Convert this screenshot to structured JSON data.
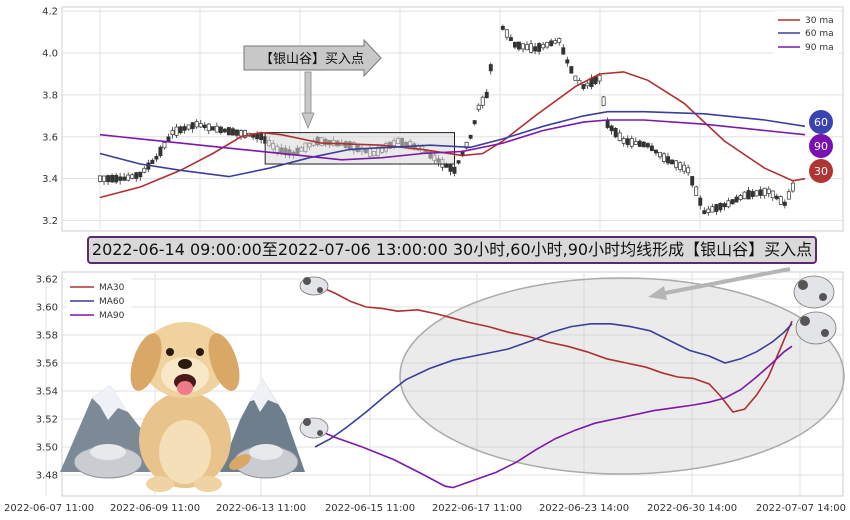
{
  "banner_text": "2022-06-14 09:00:00至2022-07-06 13:00:00 30小时,60小时,90小时均线形成【银山谷】买入点",
  "arrow_label": "【银山谷】买入点",
  "badges": [
    "60",
    "90",
    "30"
  ],
  "colors": {
    "ma30": "#b03030",
    "ma60": "#3a3f9a",
    "ma90": "#7d18a8",
    "badge60": "#3a44b0",
    "badge90": "#7a10b0",
    "badge30": "#b03535"
  },
  "chart_data": [
    {
      "type": "candlestick",
      "ylim": [
        3.15,
        4.22
      ],
      "yticks": [
        "3.2",
        "3.4",
        "3.6",
        "3.8",
        "4.0",
        "4.2"
      ],
      "legend": [
        "30 ma",
        "60 ma",
        "90 ma"
      ],
      "legend_position": "top-right",
      "grid": true,
      "series": [
        {
          "name": "30 ma",
          "points": [
            [
              0,
              3.31
            ],
            [
              10,
              3.36
            ],
            [
              20,
              3.44
            ],
            [
              28,
              3.52
            ],
            [
              35,
              3.6
            ],
            [
              40,
              3.62
            ],
            [
              45,
              3.61
            ],
            [
              55,
              3.57
            ],
            [
              70,
              3.56
            ],
            [
              80,
              3.54
            ],
            [
              90,
              3.51
            ],
            [
              95,
              3.52
            ],
            [
              100,
              3.58
            ],
            [
              108,
              3.7
            ],
            [
              118,
              3.84
            ],
            [
              124,
              3.9
            ],
            [
              130,
              3.91
            ],
            [
              136,
              3.87
            ],
            [
              145,
              3.76
            ],
            [
              155,
              3.58
            ],
            [
              165,
              3.45
            ],
            [
              172,
              3.39
            ],
            [
              175,
              3.4
            ]
          ]
        },
        {
          "name": "60 ma",
          "points": [
            [
              0,
              3.52
            ],
            [
              10,
              3.47
            ],
            [
              20,
              3.44
            ],
            [
              32,
              3.41
            ],
            [
              42,
              3.45
            ],
            [
              52,
              3.5
            ],
            [
              62,
              3.54
            ],
            [
              72,
              3.55
            ],
            [
              82,
              3.56
            ],
            [
              92,
              3.55
            ],
            [
              100,
              3.59
            ],
            [
              110,
              3.65
            ],
            [
              120,
              3.7
            ],
            [
              126,
              3.72
            ],
            [
              135,
              3.72
            ],
            [
              150,
              3.71
            ],
            [
              165,
              3.68
            ],
            [
              175,
              3.65
            ]
          ]
        },
        {
          "name": "90 ma",
          "points": [
            [
              0,
              3.61
            ],
            [
              10,
              3.59
            ],
            [
              20,
              3.57
            ],
            [
              30,
              3.55
            ],
            [
              40,
              3.53
            ],
            [
              50,
              3.51
            ],
            [
              60,
              3.49
            ],
            [
              70,
              3.5
            ],
            [
              80,
              3.52
            ],
            [
              90,
              3.53
            ],
            [
              100,
              3.57
            ],
            [
              110,
              3.63
            ],
            [
              120,
              3.67
            ],
            [
              126,
              3.68
            ],
            [
              135,
              3.68
            ],
            [
              150,
              3.66
            ],
            [
              165,
              3.63
            ],
            [
              175,
              3.61
            ]
          ]
        }
      ],
      "annotation_box": {
        "x_from": 41,
        "x_to": 88,
        "y_from": 3.47,
        "y_to": 3.62
      }
    },
    {
      "type": "line",
      "ylim": [
        3.465,
        3.625
      ],
      "yticks": [
        "3.48",
        "3.50",
        "3.52",
        "3.54",
        "3.56",
        "3.58",
        "3.60",
        "3.62"
      ],
      "xticks": [
        "2022-06-07 11:00",
        "2022-06-09 11:00",
        "2022-06-13 11:00",
        "2022-06-15 11:00",
        "2022-06-17 11:00",
        "2022-06-23 14:00",
        "2022-06-30 14:00",
        "2022-07-07 14:00"
      ],
      "legend": [
        "MA30",
        "MA60",
        "MA90"
      ],
      "legend_position": "top-left",
      "grid": true,
      "series": [
        {
          "name": "MA30",
          "points": [
            [
              0,
              3.616
            ],
            [
              5,
              3.61
            ],
            [
              9,
              3.604
            ],
            [
              13,
              3.6
            ],
            [
              17,
              3.599
            ],
            [
              21,
              3.597
            ],
            [
              26,
              3.598
            ],
            [
              31,
              3.595
            ],
            [
              35,
              3.592
            ],
            [
              39,
              3.589
            ],
            [
              44,
              3.586
            ],
            [
              49,
              3.582
            ],
            [
              54,
              3.579
            ],
            [
              59,
              3.575
            ],
            [
              64,
              3.572
            ],
            [
              69,
              3.568
            ],
            [
              74,
              3.563
            ],
            [
              79,
              3.56
            ],
            [
              84,
              3.557
            ],
            [
              88,
              3.553
            ],
            [
              92,
              3.55
            ],
            [
              96,
              3.549
            ],
            [
              100,
              3.545
            ],
            [
              103,
              3.536
            ],
            [
              106,
              3.525
            ],
            [
              109,
              3.527
            ],
            [
              112,
              3.537
            ],
            [
              115,
              3.55
            ],
            [
              118,
              3.57
            ],
            [
              121,
              3.59
            ]
          ]
        },
        {
          "name": "MA60",
          "points": [
            [
              0,
              3.5
            ],
            [
              4,
              3.506
            ],
            [
              8,
              3.514
            ],
            [
              13,
              3.525
            ],
            [
              18,
              3.537
            ],
            [
              23,
              3.548
            ],
            [
              29,
              3.556
            ],
            [
              35,
              3.562
            ],
            [
              42,
              3.566
            ],
            [
              49,
              3.57
            ],
            [
              55,
              3.576
            ],
            [
              60,
              3.582
            ],
            [
              65,
              3.586
            ],
            [
              70,
              3.588
            ],
            [
              75,
              3.588
            ],
            [
              80,
              3.586
            ],
            [
              85,
              3.583
            ],
            [
              90,
              3.576
            ],
            [
              95,
              3.569
            ],
            [
              100,
              3.565
            ],
            [
              104,
              3.56
            ],
            [
              108,
              3.563
            ],
            [
              112,
              3.568
            ],
            [
              116,
              3.575
            ],
            [
              119,
              3.582
            ],
            [
              121,
              3.588
            ]
          ]
        },
        {
          "name": "MA90",
          "points": [
            [
              0,
              3.513
            ],
            [
              5,
              3.507
            ],
            [
              12,
              3.5
            ],
            [
              20,
              3.491
            ],
            [
              27,
              3.481
            ],
            [
              33,
              3.472
            ],
            [
              35,
              3.471
            ],
            [
              40,
              3.476
            ],
            [
              46,
              3.482
            ],
            [
              51,
              3.489
            ],
            [
              56,
              3.498
            ],
            [
              61,
              3.506
            ],
            [
              66,
              3.512
            ],
            [
              71,
              3.517
            ],
            [
              76,
              3.52
            ],
            [
              81,
              3.523
            ],
            [
              86,
              3.526
            ],
            [
              91,
              3.528
            ],
            [
              96,
              3.53
            ],
            [
              100,
              3.532
            ],
            [
              104,
              3.535
            ],
            [
              108,
              3.541
            ],
            [
              112,
              3.55
            ],
            [
              116,
              3.56
            ],
            [
              119,
              3.568
            ],
            [
              121,
              3.572
            ]
          ]
        }
      ]
    }
  ]
}
